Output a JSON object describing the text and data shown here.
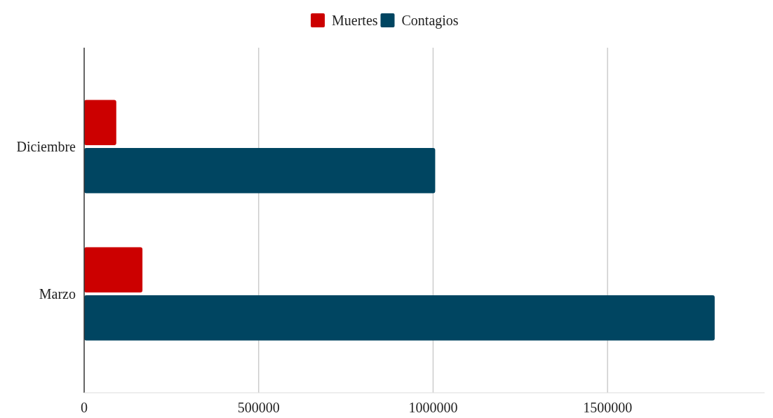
{
  "chart_data": {
    "type": "bar",
    "orientation": "horizontal",
    "categories": [
      "Diciembre",
      "Marzo"
    ],
    "series": [
      {
        "name": "Muertes",
        "color": "#cc0000",
        "values": [
          92000,
          167000
        ]
      },
      {
        "name": "Contagios",
        "color": "#004561",
        "values": [
          1006000,
          1807000
        ]
      }
    ],
    "xlim": [
      0,
      1950000
    ],
    "xticks": [
      0,
      500000,
      1000000,
      1500000
    ],
    "grid": "x",
    "legend": "top"
  }
}
